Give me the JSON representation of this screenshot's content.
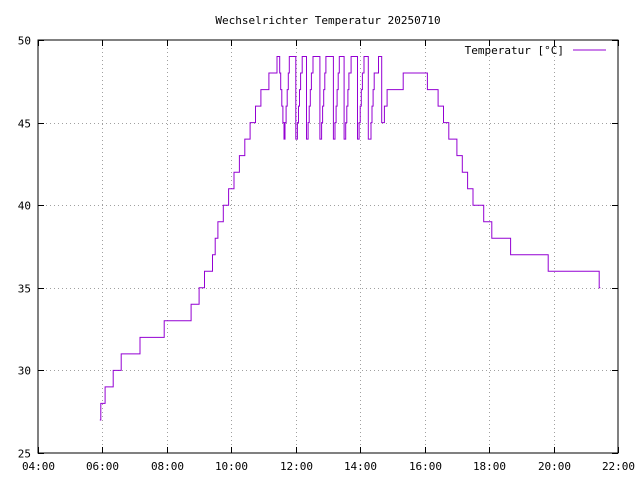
{
  "chart_data": {
    "type": "line",
    "title": "Wechselrichter Temperatur 20250710",
    "xlabel": "",
    "ylabel": "",
    "x_ticks": [
      "04:00",
      "06:00",
      "08:00",
      "10:00",
      "12:00",
      "14:00",
      "16:00",
      "18:00",
      "20:00",
      "22:00"
    ],
    "y_ticks": [
      "25",
      "30",
      "35",
      "40",
      "45",
      "50"
    ],
    "xlim": [
      "04:00",
      "22:00"
    ],
    "ylim": [
      25,
      50
    ],
    "grid": true,
    "legend_position": "top-right",
    "series": [
      {
        "name": "Temperatur [°C]",
        "color": "#9400d3",
        "step": true,
        "points": [
          [
            "05:55",
            27
          ],
          [
            "05:57",
            28
          ],
          [
            "06:05",
            29
          ],
          [
            "06:20",
            30
          ],
          [
            "06:35",
            31
          ],
          [
            "07:10",
            32
          ],
          [
            "07:55",
            33
          ],
          [
            "08:45",
            34
          ],
          [
            "09:00",
            35
          ],
          [
            "09:10",
            36
          ],
          [
            "09:25",
            37
          ],
          [
            "09:30",
            38
          ],
          [
            "09:35",
            39
          ],
          [
            "09:45",
            40
          ],
          [
            "09:55",
            41
          ],
          [
            "10:05",
            42
          ],
          [
            "10:15",
            43
          ],
          [
            "10:25",
            44
          ],
          [
            "10:35",
            45
          ],
          [
            "10:45",
            46
          ],
          [
            "10:55",
            47
          ],
          [
            "11:10",
            48
          ],
          [
            "11:25",
            49
          ],
          [
            "11:30",
            48
          ],
          [
            "11:32",
            47
          ],
          [
            "11:34",
            46
          ],
          [
            "11:36",
            45
          ],
          [
            "11:38",
            44
          ],
          [
            "11:40",
            45
          ],
          [
            "11:42",
            46
          ],
          [
            "11:44",
            47
          ],
          [
            "11:46",
            48
          ],
          [
            "11:48",
            49
          ],
          [
            "12:00",
            44
          ],
          [
            "12:03",
            45
          ],
          [
            "12:05",
            46
          ],
          [
            "12:07",
            47
          ],
          [
            "12:09",
            48
          ],
          [
            "12:12",
            49
          ],
          [
            "12:20",
            44
          ],
          [
            "12:23",
            45
          ],
          [
            "12:25",
            46
          ],
          [
            "12:27",
            47
          ],
          [
            "12:29",
            48
          ],
          [
            "12:32",
            49
          ],
          [
            "12:45",
            44
          ],
          [
            "12:48",
            45
          ],
          [
            "12:50",
            46
          ],
          [
            "12:52",
            47
          ],
          [
            "12:54",
            48
          ],
          [
            "12:56",
            49
          ],
          [
            "13:10",
            44
          ],
          [
            "13:13",
            45
          ],
          [
            "13:15",
            46
          ],
          [
            "13:17",
            47
          ],
          [
            "13:19",
            48
          ],
          [
            "13:21",
            49
          ],
          [
            "13:30",
            44
          ],
          [
            "13:33",
            45
          ],
          [
            "13:35",
            46
          ],
          [
            "13:37",
            47
          ],
          [
            "13:39",
            48
          ],
          [
            "13:43",
            49
          ],
          [
            "13:55",
            44
          ],
          [
            "13:58",
            45
          ],
          [
            "14:00",
            46
          ],
          [
            "14:02",
            47
          ],
          [
            "14:04",
            48
          ],
          [
            "14:07",
            49
          ],
          [
            "14:15",
            44
          ],
          [
            "14:20",
            45
          ],
          [
            "14:22",
            46
          ],
          [
            "14:24",
            47
          ],
          [
            "14:26",
            48
          ],
          [
            "14:34",
            49
          ],
          [
            "14:40",
            45
          ],
          [
            "14:45",
            46
          ],
          [
            "14:50",
            47
          ],
          [
            "15:20",
            48
          ],
          [
            "16:05",
            47
          ],
          [
            "16:25",
            46
          ],
          [
            "16:35",
            45
          ],
          [
            "16:45",
            44
          ],
          [
            "17:00",
            43
          ],
          [
            "17:10",
            42
          ],
          [
            "17:20",
            41
          ],
          [
            "17:30",
            40
          ],
          [
            "17:50",
            39
          ],
          [
            "18:05",
            38
          ],
          [
            "18:40",
            37
          ],
          [
            "19:50",
            36
          ],
          [
            "21:25",
            35
          ],
          [
            "21:27",
            35
          ]
        ]
      }
    ]
  }
}
